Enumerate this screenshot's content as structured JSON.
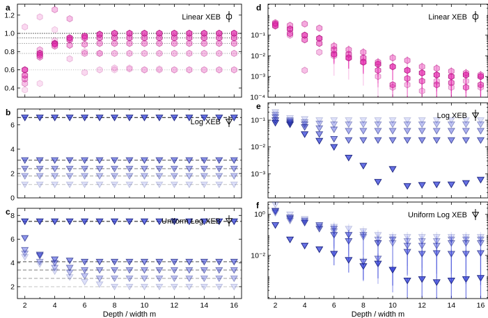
{
  "chart_data": [
    {
      "panel": "a",
      "type": "scatter",
      "yscale": "linear",
      "ylim": [
        0.3,
        1.32
      ],
      "yticks": [
        0.4,
        0.6,
        0.8,
        1.0,
        1.2
      ],
      "ytick_labels": [
        "0.4",
        "0.6",
        "0.8",
        "1.0",
        "1.2"
      ],
      "legend": "Linear XEB",
      "marker": "hexagon",
      "color": "#e62fb0",
      "ref_lines": [
        1.0,
        0.95,
        0.89,
        0.78,
        0.6
      ],
      "series": [
        {
          "alpha": 1.0,
          "values": [
            0.6,
            0.78,
            0.89,
            0.95,
            0.97,
            0.99,
            1.0,
            1.0,
            1.0,
            1.0,
            1.0,
            1.0,
            1.0,
            1.0,
            1.0
          ]
        },
        {
          "alpha": 0.75,
          "values": [
            0.54,
            0.76,
            0.88,
            0.93,
            0.95,
            0.95,
            0.95,
            0.95,
            0.95,
            0.95,
            0.95,
            0.95,
            0.95,
            0.95,
            0.95
          ]
        },
        {
          "alpha": 0.55,
          "values": [
            0.5,
            0.74,
            0.86,
            0.87,
            0.88,
            0.89,
            0.89,
            0.89,
            0.89,
            0.89,
            0.89,
            0.89,
            0.89,
            0.89,
            0.89
          ]
        },
        {
          "alpha": 0.4,
          "values": [
            0.45,
            0.82,
            1.26,
            1.16,
            0.78,
            0.78,
            0.78,
            0.78,
            0.78,
            0.78,
            0.78,
            0.78,
            0.78,
            0.78,
            0.78
          ]
        },
        {
          "alpha": 0.25,
          "values": [
            1.07,
            1.18,
            0.92,
            0.72,
            0.57,
            0.6,
            0.62,
            0.61,
            0.6,
            0.6,
            0.6,
            0.6,
            0.6,
            0.6,
            0.6
          ]
        },
        {
          "alpha": 0.2,
          "values": [
            0.38,
            0.45,
            1.04,
            0.95,
            0.8,
            0.78,
            0.6,
            0.62,
            0.6,
            0.61,
            0.6,
            0.6,
            0.6,
            0.6,
            0.6
          ]
        }
      ]
    },
    {
      "panel": "b",
      "type": "scatter",
      "yscale": "linear",
      "ylim": [
        0,
        7.3
      ],
      "yticks": [
        0,
        2,
        4,
        6
      ],
      "ytick_labels": [
        "0",
        "2",
        "4",
        "6"
      ],
      "legend": "Log XEB",
      "marker": "triangle-down",
      "color": "#3340d9",
      "ref_lines": [
        6.6,
        3.1,
        2.4,
        1.8,
        1.1
      ],
      "series": [
        {
          "alpha": 1.0,
          "values": [
            6.6,
            6.6,
            6.6,
            6.6,
            6.6,
            6.6,
            6.6,
            6.6,
            6.6,
            6.6,
            6.6,
            6.6,
            6.6,
            6.6,
            6.6
          ]
        },
        {
          "alpha": 0.75,
          "values": [
            3.1,
            3.1,
            3.1,
            3.1,
            3.1,
            3.1,
            3.1,
            3.1,
            3.1,
            3.1,
            3.1,
            3.1,
            3.1,
            3.1,
            3.1
          ]
        },
        {
          "alpha": 0.55,
          "values": [
            2.4,
            2.4,
            2.4,
            2.4,
            2.4,
            2.4,
            2.4,
            2.4,
            2.4,
            2.4,
            2.4,
            2.4,
            2.4,
            2.4,
            2.4
          ]
        },
        {
          "alpha": 0.4,
          "values": [
            1.8,
            1.8,
            1.8,
            1.8,
            1.8,
            1.8,
            1.8,
            1.8,
            1.8,
            1.8,
            1.8,
            1.8,
            1.8,
            1.8,
            1.8
          ]
        },
        {
          "alpha": 0.22,
          "values": [
            1.1,
            1.1,
            1.1,
            1.1,
            1.1,
            1.1,
            1.1,
            1.1,
            1.1,
            1.1,
            1.1,
            1.1,
            1.1,
            1.1,
            1.1
          ]
        }
      ]
    },
    {
      "panel": "c",
      "type": "scatter",
      "yscale": "linear",
      "ylim": [
        1,
        8.6
      ],
      "yticks": [
        2,
        4,
        6,
        8
      ],
      "ytick_labels": [
        "2",
        "4",
        "6",
        "8"
      ],
      "legend": "Uniform Log XEB",
      "marker": "triangle-down",
      "color": "#3340d9",
      "ref_lines": [
        7.5,
        4.1,
        3.4,
        2.7,
        2.0
      ],
      "series": [
        {
          "alpha": 1.0,
          "values": [
            7.5,
            7.5,
            7.5,
            7.5,
            7.5,
            7.5,
            7.5,
            7.5,
            7.5,
            7.5,
            7.5,
            7.5,
            7.5,
            7.5,
            7.5
          ]
        },
        {
          "alpha": 0.75,
          "values": [
            6.1,
            4.7,
            4.3,
            4.2,
            4.1,
            4.1,
            4.1,
            4.1,
            4.1,
            4.1,
            4.1,
            4.1,
            4.1,
            4.1,
            4.1
          ]
        },
        {
          "alpha": 0.55,
          "values": [
            5.1,
            4.6,
            4.0,
            3.6,
            3.4,
            3.4,
            3.4,
            3.4,
            3.4,
            3.4,
            3.4,
            3.4,
            3.4,
            3.4,
            3.4
          ]
        },
        {
          "alpha": 0.4,
          "values": [
            4.8,
            4.1,
            3.6,
            3.2,
            2.9,
            2.7,
            2.7,
            2.7,
            2.7,
            2.7,
            2.7,
            2.7,
            2.7,
            2.7,
            2.7
          ]
        },
        {
          "alpha": 0.22,
          "values": [
            4.5,
            3.9,
            3.3,
            2.8,
            2.4,
            2.2,
            2.0,
            2.0,
            2.0,
            2.0,
            2.0,
            2.0,
            2.0,
            2.0,
            2.0
          ]
        }
      ]
    },
    {
      "panel": "d",
      "type": "scatter",
      "yscale": "log",
      "ylim_exp": [
        -4,
        0.5
      ],
      "yticks": [
        -4,
        -3,
        -2,
        -1
      ],
      "ytick_labels": [
        "10⁻⁴",
        "10⁻³",
        "10⁻²",
        "10⁻¹"
      ],
      "legend": "Linear XEB",
      "marker": "hexagon",
      "color": "#e62fb0",
      "series": [
        {
          "alpha": 1.0,
          "err": 0.3,
          "values": [
            0.35,
            0.2,
            0.1,
            0.07,
            0.012,
            0.008,
            0.005,
            0.004,
            0.003,
            0.002,
            0.0015,
            0.0012,
            0.001,
            0.0012,
            0.001
          ]
        },
        {
          "alpha": 0.75,
          "err": 0.4,
          "values": [
            0.28,
            0.12,
            0.06,
            0.04,
            0.02,
            0.012,
            0.008,
            0.002,
            0.0004,
            0.0008,
            0.0006,
            0.0004,
            0.0005,
            0.0003,
            0.0004
          ]
        },
        {
          "alpha": 0.55,
          "err": 0.5,
          "values": [
            0.4,
            0.3,
            0.35,
            0.22,
            0.03,
            0.02,
            0.015,
            0.005,
            0.008,
            0.006,
            0.003,
            0.0025,
            0.0018,
            0.0015,
            0.0012
          ]
        },
        {
          "alpha": 0.4,
          "err": 0.6,
          "values": [
            0.3,
            0.1,
            0.002,
            0.015,
            0.01,
            0.008,
            0.005,
            0.001,
            0.0003,
            0.0004,
            0.0002,
            0.0006,
            0.0003,
            0.0006,
            0.0003
          ]
        }
      ]
    },
    {
      "panel": "e",
      "type": "scatter",
      "yscale": "log",
      "ylim_exp": [
        -3.9,
        -0.35
      ],
      "yticks": [
        -3,
        -2,
        -1
      ],
      "ytick_labels": [
        "10⁻³",
        "10⁻²",
        "10⁻¹"
      ],
      "legend": "Log XEB",
      "marker": "triangle-down",
      "color": "#3340d9",
      "series": [
        {
          "alpha": 1.0,
          "values": [
            0.08,
            0.07,
            0.03,
            0.017,
            0.01,
            0.004,
            0.002,
            0.0005,
            0.0015,
            0.00035,
            0.00038,
            0.0004,
            0.0004,
            0.00045,
            0.0006
          ]
        },
        {
          "alpha": 0.75,
          "values": [
            0.1,
            0.08,
            0.055,
            0.03,
            0.02,
            0.018,
            0.018,
            0.018,
            0.018,
            0.018,
            0.018,
            0.018,
            0.018,
            0.018,
            0.018
          ]
        },
        {
          "alpha": 0.55,
          "values": [
            0.13,
            0.09,
            0.07,
            0.05,
            0.045,
            0.04,
            0.04,
            0.04,
            0.04,
            0.04,
            0.04,
            0.04,
            0.04,
            0.04,
            0.04
          ]
        },
        {
          "alpha": 0.4,
          "values": [
            0.16,
            0.1,
            0.085,
            0.075,
            0.07,
            0.07,
            0.07,
            0.07,
            0.07,
            0.07,
            0.07,
            0.07,
            0.07,
            0.07,
            0.07
          ]
        },
        {
          "alpha": 0.22,
          "values": [
            0.2,
            0.12,
            0.11,
            0.1,
            0.1,
            0.1,
            0.1,
            0.1,
            0.1,
            0.1,
            0.1,
            0.1,
            0.1,
            0.1,
            0.1
          ]
        }
      ]
    },
    {
      "panel": "f",
      "type": "scatter",
      "yscale": "log",
      "ylim_exp": [
        -4.1,
        0.6
      ],
      "yticks": [
        -2,
        0
      ],
      "ytick_labels": [
        "10⁻²",
        "10⁰"
      ],
      "legend": "Uniform Log XEB",
      "marker": "triangle-down",
      "color": "#3340d9",
      "series": [
        {
          "alpha": 1.0,
          "err": 0.35,
          "values": [
            0.3,
            0.06,
            0.03,
            0.02,
            0.012,
            0.006,
            0.003,
            0.004,
            0.002,
            0.0006,
            0.0007,
            0.0005,
            0.0006,
            0.0007,
            0.0008
          ]
        },
        {
          "alpha": 0.75,
          "err": 0.5,
          "values": [
            1.5,
            0.7,
            0.4,
            0.2,
            0.1,
            0.05,
            0.005,
            0.04,
            0.002,
            0.015,
            0.012,
            0.013,
            0.012,
            0.012,
            0.013
          ]
        },
        {
          "alpha": 0.55,
          "err": 0.6,
          "values": [
            1.4,
            0.6,
            0.5,
            0.3,
            0.2,
            0.1,
            0.1,
            0.007,
            0.06,
            0.03,
            0.03,
            0.03,
            0.04,
            0.04,
            0.04
          ]
        },
        {
          "alpha": 0.4,
          "err": 0.6,
          "values": [
            1.2,
            0.5,
            0.4,
            0.25,
            0.15,
            0.1,
            0.08,
            0.06,
            0.04,
            0.05,
            0.05,
            0.05,
            0.06,
            0.06,
            0.06
          ]
        },
        {
          "alpha": 0.22,
          "err": 0.6,
          "values": [
            3.0,
            1.0,
            0.6,
            0.3,
            0.25,
            0.2,
            0.15,
            0.1,
            0.08,
            0.08,
            0.08,
            0.08,
            0.08,
            0.08,
            0.08
          ]
        }
      ]
    }
  ],
  "x_values": [
    2,
    3,
    4,
    5,
    6,
    7,
    8,
    9,
    10,
    11,
    12,
    13,
    14,
    15,
    16
  ],
  "x_ticks": [
    2,
    4,
    6,
    8,
    10,
    12,
    14,
    16
  ],
  "x_range": [
    1.5,
    16.5
  ],
  "xlabel": "Depth / width m"
}
